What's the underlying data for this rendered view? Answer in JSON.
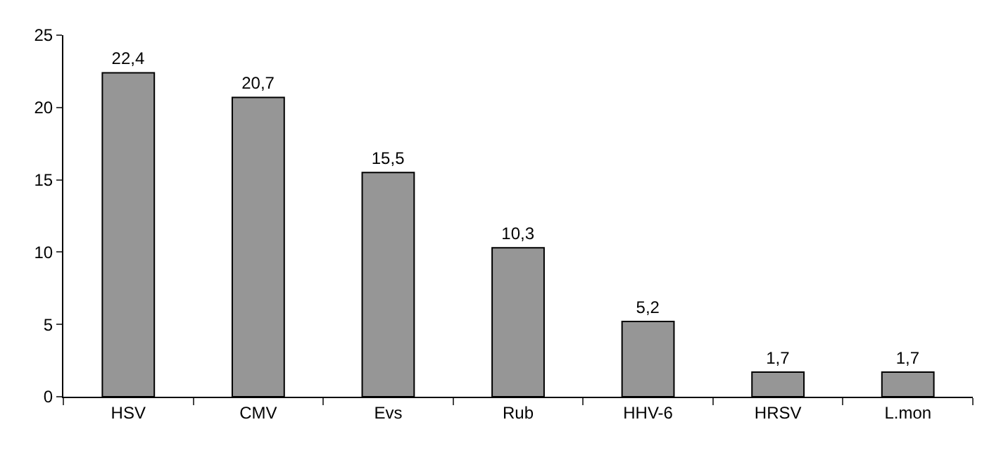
{
  "chart_data": {
    "type": "bar",
    "categories": [
      "HSV",
      "CMV",
      "Evs",
      "Rub",
      "HHV-6",
      "HRSV",
      "L.mon"
    ],
    "values": [
      22.4,
      20.7,
      15.5,
      10.3,
      5.2,
      1.7,
      1.7
    ],
    "value_labels": [
      "22,4",
      "20,7",
      "15,5",
      "10,3",
      "5,2",
      "1,7",
      "1,7"
    ],
    "color": "#969696",
    "ylim": [
      0,
      25
    ],
    "yticks": [
      0,
      5,
      10,
      15,
      20,
      25
    ],
    "grid": false
  }
}
